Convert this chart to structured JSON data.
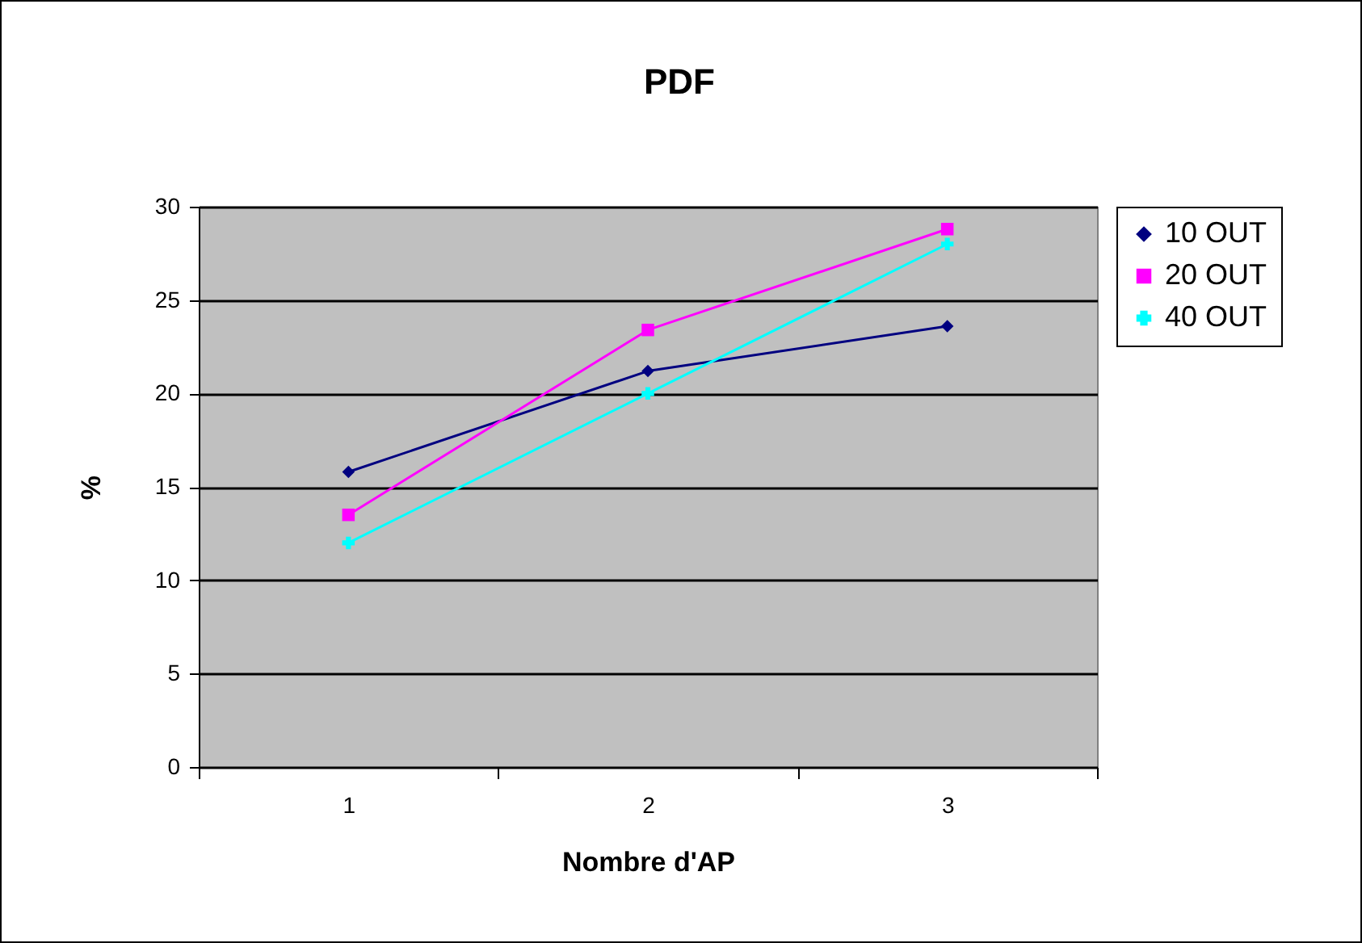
{
  "chart_data": {
    "type": "line",
    "title": "PDF",
    "xlabel": "Nombre d'AP",
    "ylabel": "%",
    "categories": [
      "1",
      "2",
      "3"
    ],
    "ylim": [
      0,
      30
    ],
    "yticks": [
      0,
      5,
      10,
      15,
      20,
      25,
      30
    ],
    "grid": "y",
    "legend": "right",
    "series": [
      {
        "name": "10 OUT",
        "color": "#000080",
        "marker": "diamond",
        "values": [
          15.8,
          21.2,
          23.6
        ]
      },
      {
        "name": "20 OUT",
        "color": "#ff00ff",
        "marker": "square",
        "values": [
          13.5,
          23.4,
          28.8
        ]
      },
      {
        "name": "40 OUT",
        "color": "#00ffff",
        "marker": "cross",
        "values": [
          12.0,
          20.0,
          28.0
        ]
      }
    ]
  }
}
